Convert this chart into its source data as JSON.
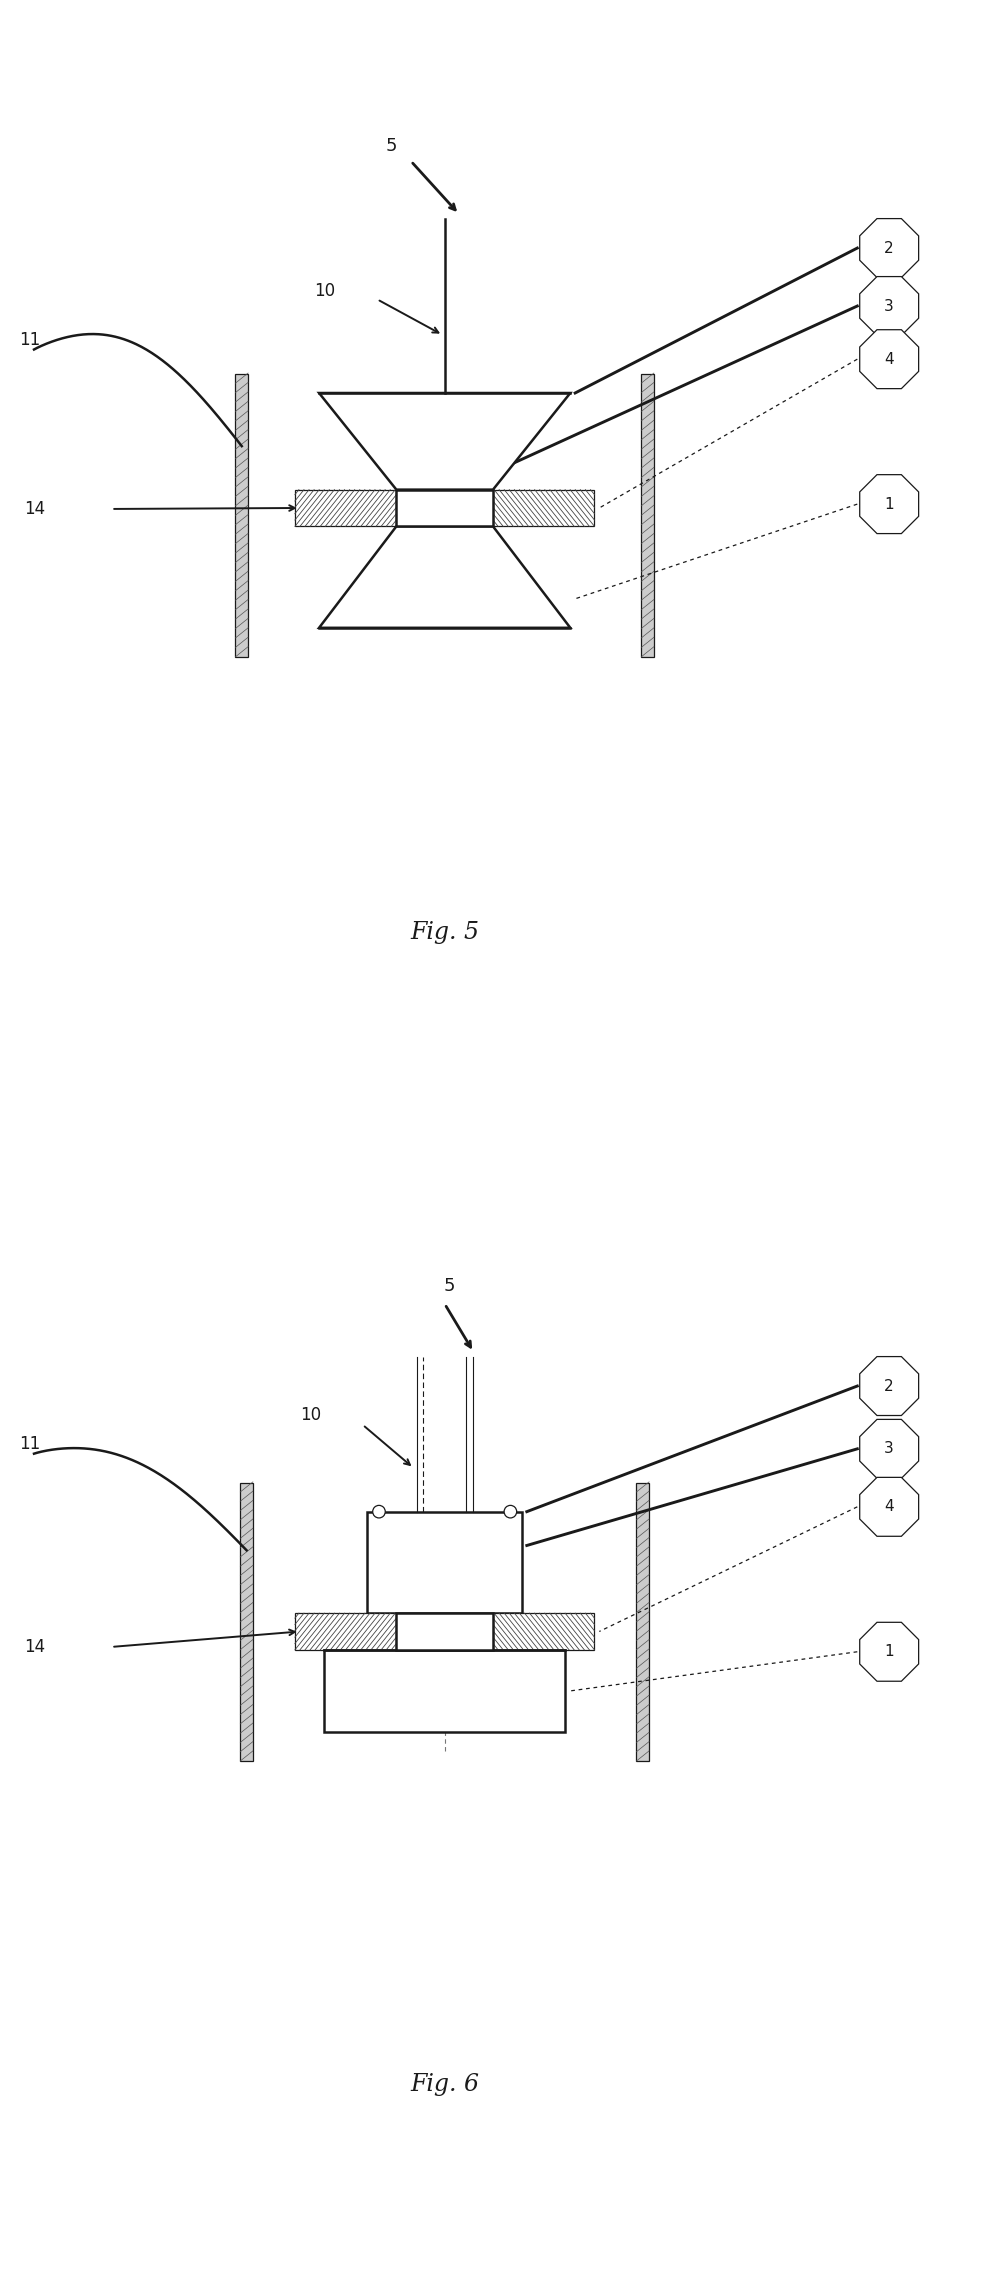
{
  "bg_color": "#ffffff",
  "line_color": "#1a1a1a",
  "fig5_label": "Fig. 5",
  "fig6_label": "Fig. 6",
  "hatch_color": "#444444",
  "dash_color": "#777777",
  "pole_color": "#222222"
}
